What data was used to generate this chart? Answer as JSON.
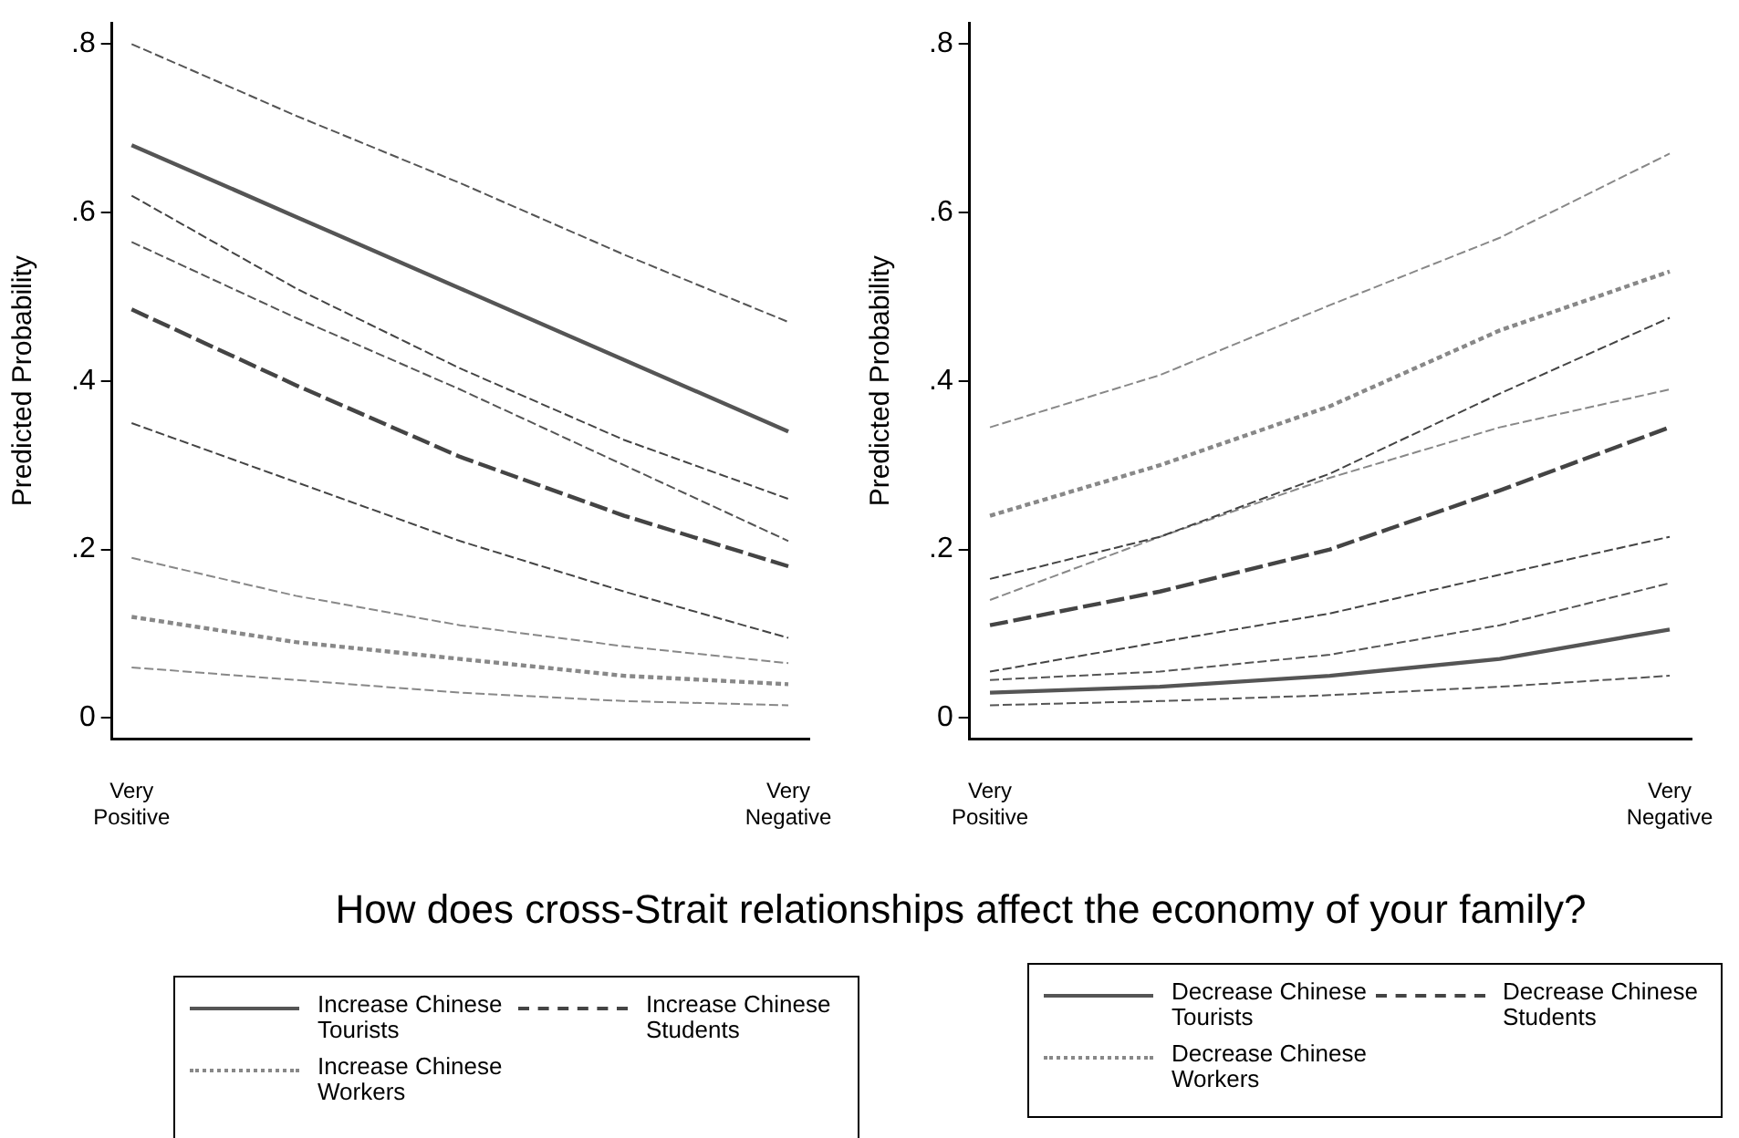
{
  "chart_data": [
    {
      "type": "line",
      "ylabel": "Predicted Probability",
      "categories": [
        "Very Positive",
        null,
        null,
        null,
        "Very Negative"
      ],
      "ylim": [
        -0.025,
        0.825
      ],
      "yticks": [
        {
          "value": 0,
          "label": "0"
        },
        {
          "value": 0.2,
          "label": ".2"
        },
        {
          "value": 0.4,
          "label": ".4"
        },
        {
          "value": 0.6,
          "label": ".6"
        },
        {
          "value": 0.8,
          "label": ".8"
        }
      ],
      "grid": false,
      "legend": "bottom",
      "marker": "none",
      "annotations": [
        "How does cross-Strait relationships affect the economy of your family?"
      ],
      "series": [
        {
          "name": "Increase Chinese Tourists",
          "color": "#555555",
          "line_style": "solid",
          "values": [
            0.68,
            0.595,
            0.51,
            0.425,
            0.34
          ]
        },
        {
          "color": "#555555",
          "line_style": "dashed",
          "values": [
            0.8,
            0.715,
            0.635,
            0.55,
            0.47
          ]
        },
        {
          "color": "#555555",
          "line_style": "dashed",
          "values": [
            0.565,
            0.475,
            0.39,
            0.3,
            0.21
          ]
        },
        {
          "name": "Increase Chinese Students",
          "color": "#444444",
          "line_style": "dashed",
          "values": [
            0.485,
            0.395,
            0.31,
            0.24,
            0.18
          ]
        },
        {
          "color": "#444444",
          "line_style": "dashed",
          "values": [
            0.62,
            0.51,
            0.415,
            0.33,
            0.26
          ]
        },
        {
          "color": "#444444",
          "line_style": "dashed",
          "values": [
            0.35,
            0.28,
            0.21,
            0.15,
            0.095
          ]
        },
        {
          "name": "Increase Chinese Workers",
          "color": "#888888",
          "line_style": "dotted",
          "values": [
            0.12,
            0.09,
            0.07,
            0.05,
            0.04
          ]
        },
        {
          "color": "#888888",
          "line_style": "dashed",
          "values": [
            0.19,
            0.145,
            0.11,
            0.085,
            0.065
          ]
        },
        {
          "color": "#888888",
          "line_style": "dashed",
          "values": [
            0.06,
            0.045,
            0.03,
            0.02,
            0.015
          ]
        }
      ]
    },
    {
      "type": "line",
      "ylabel": "Predicted Probability",
      "categories": [
        "Very Positive",
        null,
        null,
        null,
        "Very Negative"
      ],
      "ylim": [
        -0.025,
        0.825
      ],
      "yticks": [
        {
          "value": 0,
          "label": "0"
        },
        {
          "value": 0.2,
          "label": ".2"
        },
        {
          "value": 0.4,
          "label": ".4"
        },
        {
          "value": 0.6,
          "label": ".6"
        },
        {
          "value": 0.8,
          "label": ".8"
        }
      ],
      "grid": false,
      "legend": "bottom",
      "marker": "none",
      "series": [
        {
          "name": "Decrease Chinese Tourists",
          "color": "#555555",
          "line_style": "solid",
          "values": [
            0.03,
            0.037,
            0.05,
            0.07,
            0.105
          ]
        },
        {
          "color": "#555555",
          "line_style": "dashed",
          "values": [
            0.045,
            0.055,
            0.075,
            0.11,
            0.16
          ]
        },
        {
          "color": "#555555",
          "line_style": "dashed",
          "values": [
            0.015,
            0.02,
            0.027,
            0.037,
            0.05
          ]
        },
        {
          "name": "Decrease Chinese Students",
          "color": "#444444",
          "line_style": "dashed",
          "values": [
            0.11,
            0.15,
            0.2,
            0.27,
            0.345
          ]
        },
        {
          "color": "#444444",
          "line_style": "dashed",
          "values": [
            0.165,
            0.215,
            0.29,
            0.385,
            0.475
          ]
        },
        {
          "color": "#444444",
          "line_style": "dashed",
          "values": [
            0.055,
            0.09,
            0.124,
            0.17,
            0.215
          ]
        },
        {
          "name": "Decrease Chinese Workers",
          "color": "#888888",
          "line_style": "dotted",
          "values": [
            0.24,
            0.3,
            0.37,
            0.46,
            0.53
          ]
        },
        {
          "color": "#888888",
          "line_style": "dashed",
          "values": [
            0.345,
            0.407,
            0.49,
            0.57,
            0.67
          ]
        },
        {
          "color": "#888888",
          "line_style": "dashed",
          "values": [
            0.14,
            0.215,
            0.285,
            0.345,
            0.39
          ]
        }
      ]
    }
  ]
}
